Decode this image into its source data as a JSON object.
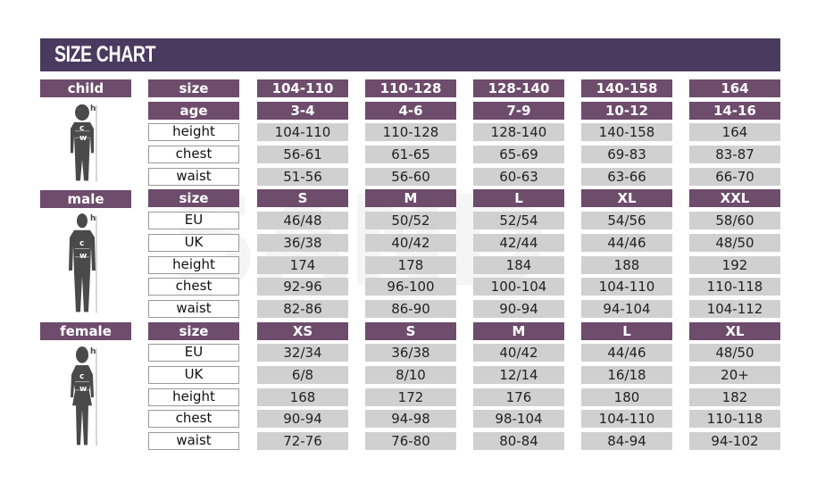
{
  "title": "SIZE CHART",
  "colors": {
    "title_bar": "#4b3a5f",
    "header_cell": "#6d4c6c",
    "value_cell": "#d0d0d0"
  },
  "sections": [
    {
      "label": "child",
      "icon": "child-figure-icon",
      "rows": [
        {
          "field": "size",
          "header": true,
          "values": [
            "104-110",
            "110-128",
            "128-140",
            "140-158",
            "164"
          ]
        },
        {
          "field": "age",
          "header": true,
          "values": [
            "3-4",
            "4-6",
            "7-9",
            "10-12",
            "14-16"
          ]
        },
        {
          "field": "height",
          "values": [
            "104-110",
            "110-128",
            "128-140",
            "140-158",
            "164"
          ]
        },
        {
          "field": "chest",
          "values": [
            "56-61",
            "61-65",
            "65-69",
            "69-83",
            "83-87"
          ]
        },
        {
          "field": "waist",
          "values": [
            "51-56",
            "56-60",
            "60-63",
            "63-66",
            "66-70"
          ]
        }
      ]
    },
    {
      "label": "male",
      "icon": "male-figure-icon",
      "rows": [
        {
          "field": "size",
          "header": true,
          "values": [
            "S",
            "M",
            "L",
            "XL",
            "XXL"
          ]
        },
        {
          "field": "EU",
          "values": [
            "46/48",
            "50/52",
            "52/54",
            "54/56",
            "58/60"
          ]
        },
        {
          "field": "UK",
          "values": [
            "36/38",
            "40/42",
            "42/44",
            "44/46",
            "48/50"
          ]
        },
        {
          "field": "height",
          "values": [
            "174",
            "178",
            "184",
            "188",
            "192"
          ]
        },
        {
          "field": "chest",
          "values": [
            "92-96",
            "96-100",
            "100-104",
            "104-110",
            "110-118"
          ]
        },
        {
          "field": "waist",
          "values": [
            "82-86",
            "86-90",
            "90-94",
            "94-104",
            "104-112"
          ]
        }
      ]
    },
    {
      "label": "female",
      "icon": "female-figure-icon",
      "rows": [
        {
          "field": "size",
          "header": true,
          "values": [
            "XS",
            "S",
            "M",
            "L",
            "XL"
          ]
        },
        {
          "field": "EU",
          "values": [
            "32/34",
            "36/38",
            "40/42",
            "44/46",
            "48/50"
          ]
        },
        {
          "field": "UK",
          "values": [
            "6/8",
            "8/10",
            "12/14",
            "16/18",
            "20+"
          ]
        },
        {
          "field": "height",
          "values": [
            "168",
            "172",
            "176",
            "180",
            "182"
          ]
        },
        {
          "field": "chest",
          "values": [
            "90-94",
            "94-98",
            "98-104",
            "104-110",
            "110-118"
          ]
        },
        {
          "field": "waist",
          "values": [
            "72-76",
            "76-80",
            "80-84",
            "84-94",
            "94-102"
          ]
        }
      ]
    }
  ],
  "figure_marks": {
    "height": "h",
    "chest": "c",
    "waist": "w"
  }
}
